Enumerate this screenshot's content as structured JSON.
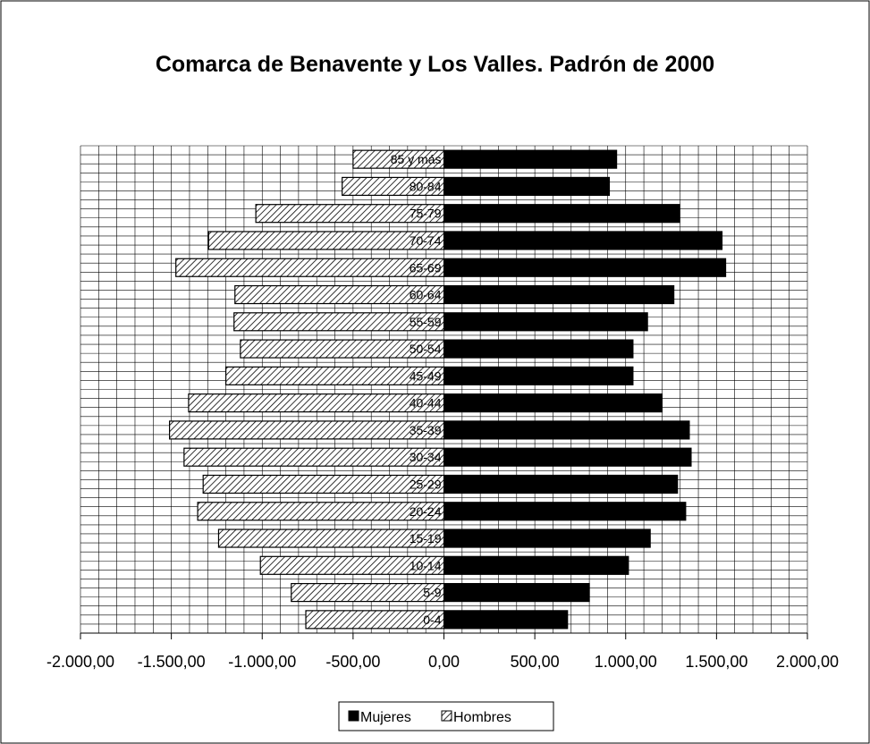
{
  "chart_data": {
    "type": "bar",
    "orientation": "horizontal",
    "layout": "population-pyramid",
    "title": "Comarca de Benavente y Los Valles. Padrón de 2000",
    "categories": [
      "0-4",
      "5-9",
      "10-14",
      "15-19",
      "20-24",
      "25-29",
      "30-34",
      "35-39",
      "40-44",
      "45-49",
      "50-54",
      "55-59",
      "60-64",
      "65-69",
      "70-74",
      "75-79",
      "80-84",
      "85 y más"
    ],
    "series": [
      {
        "name": "Mujeres",
        "color": "#000000",
        "fill": "solid",
        "values": [
          680,
          800,
          1015,
          1135,
          1330,
          1285,
          1360,
          1350,
          1200,
          1040,
          1040,
          1120,
          1265,
          1550,
          1530,
          1295,
          910,
          950
        ]
      },
      {
        "name": "Hombres",
        "color": "#000000",
        "fill": "diagonal-hatch",
        "values": [
          -760,
          -840,
          -1010,
          -1240,
          -1355,
          -1325,
          -1430,
          -1510,
          -1405,
          -1200,
          -1120,
          -1155,
          -1150,
          -1475,
          -1295,
          -1035,
          -560,
          -500
        ]
      }
    ],
    "xlim": [
      -2000,
      2000
    ],
    "xticks": [
      -2000,
      -1500,
      -1000,
      -500,
      0,
      500,
      1000,
      1500,
      2000
    ],
    "xtick_labels": [
      "-2.000,00",
      "-1.500,00",
      "-1.000,00",
      "-500,00",
      "0,00",
      "500,00",
      "1.000,00",
      "1.500,00",
      "2.000,00"
    ],
    "grid": {
      "vertical": true,
      "horizontal": true,
      "vertical_step": 100,
      "horizontal_per_category": 3
    },
    "legend": {
      "position": "bottom-center",
      "entries": [
        "Mujeres",
        "Hombres"
      ]
    },
    "xlabel": "",
    "ylabel": ""
  }
}
